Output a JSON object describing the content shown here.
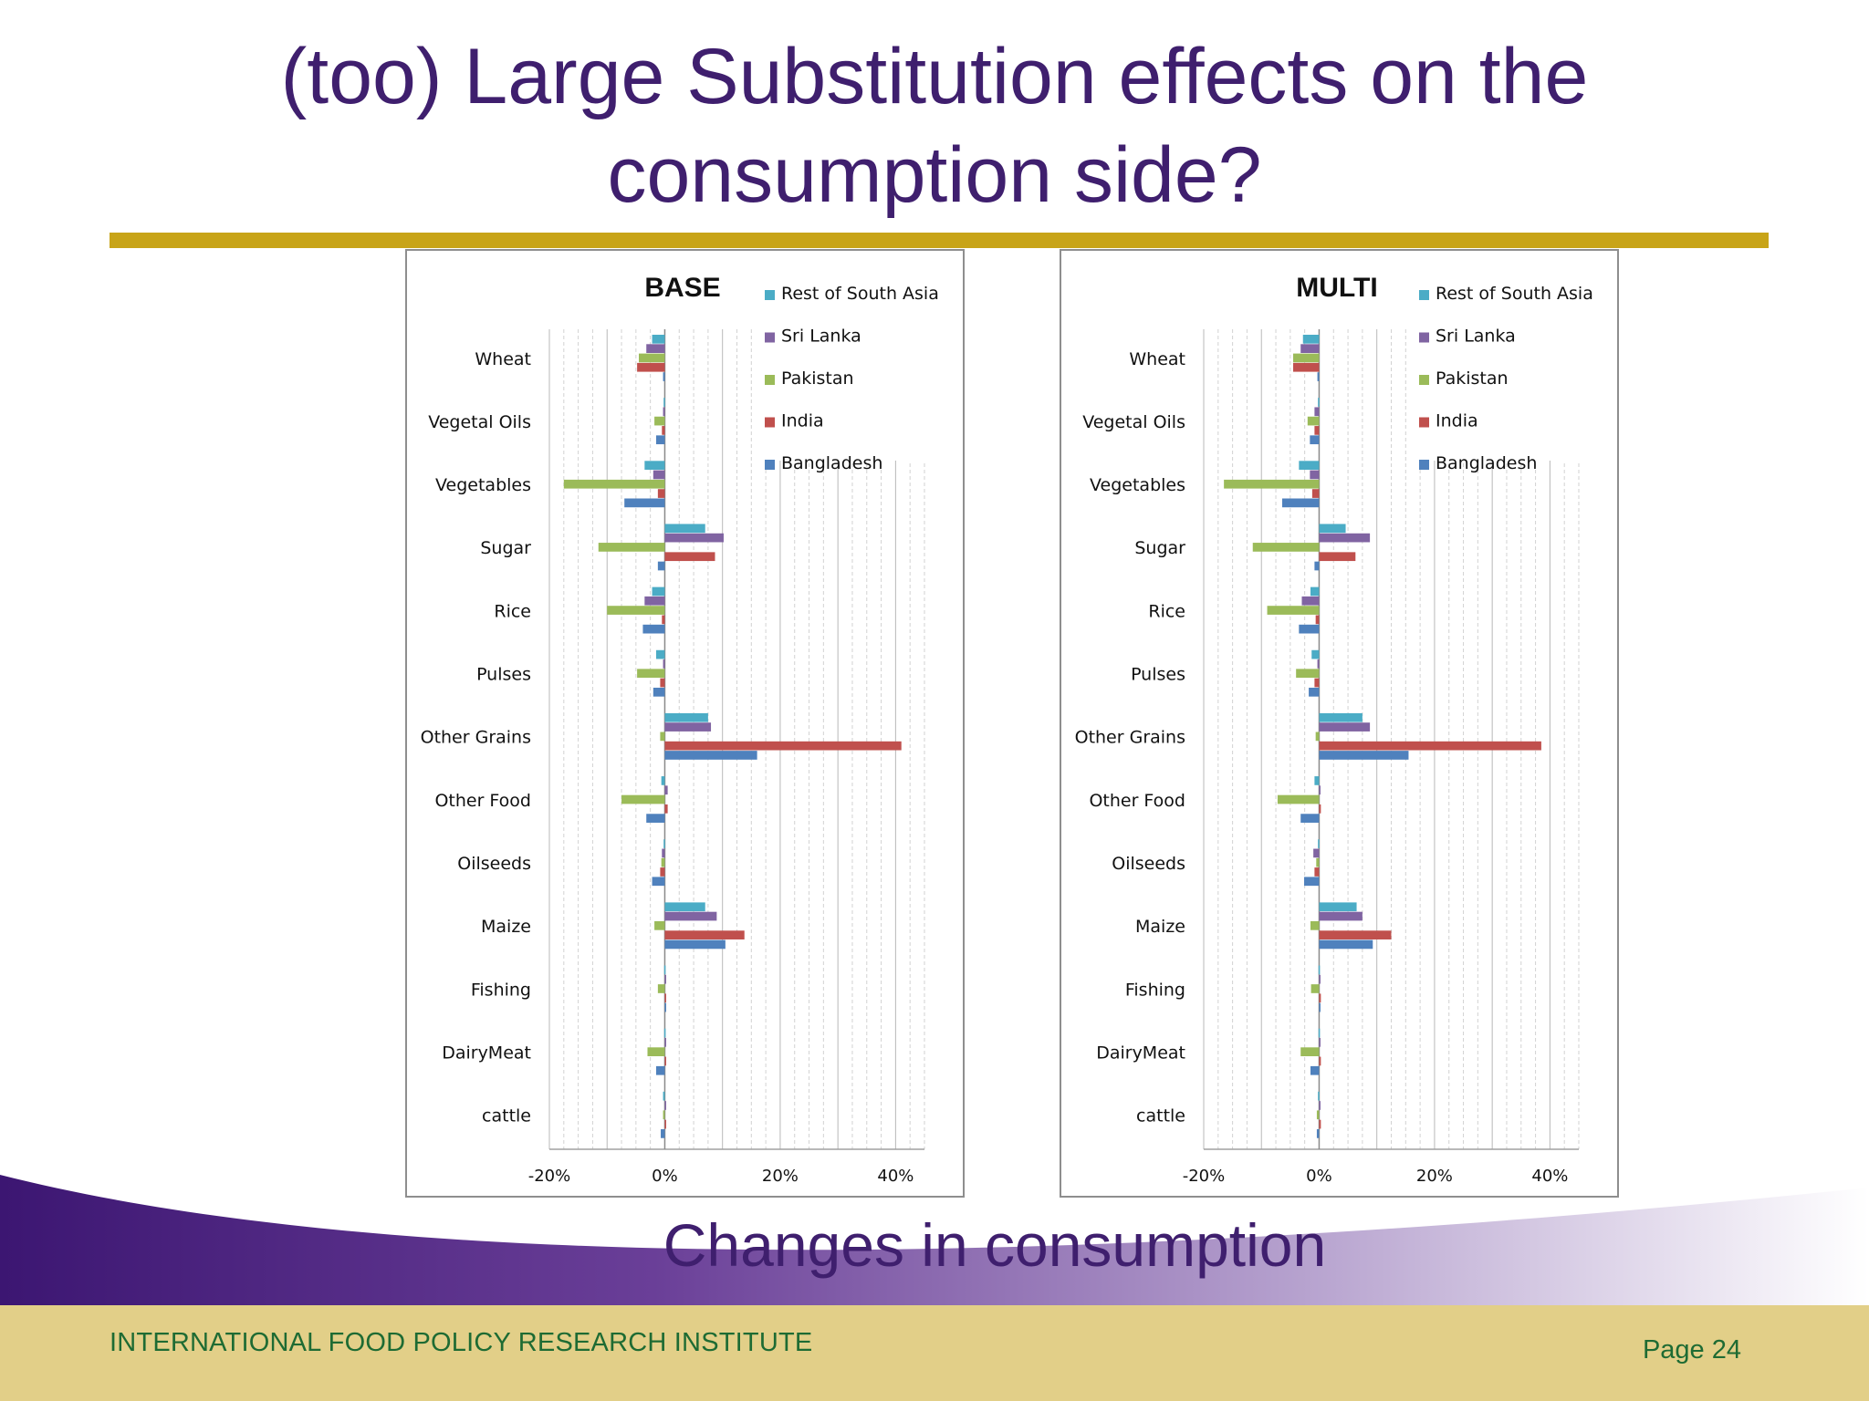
{
  "slide": {
    "title_line1": "(too) Large Substitution effects on the",
    "title_line2": "consumption side?",
    "caption": "Changes in consumption",
    "footer_org": "INTERNATIONAL FOOD POLICY RESEARCH INSTITUTE",
    "page_label": "Page 24"
  },
  "colors": {
    "title": "#3f1f6e",
    "rule": "#c8a418",
    "footer_band": "#e2cf88",
    "footer_text": "#1e6b33",
    "swoosh": "#5a2d8a"
  },
  "chart_data": [
    {
      "type": "bar",
      "orientation": "horizontal",
      "title": "BASE",
      "categories": [
        "Wheat",
        "Vegetal Oils",
        "Vegetables",
        "Sugar",
        "Rice",
        "Pulses",
        "Other Grains",
        "Other Food",
        "Oilseeds",
        "Maize",
        "Fishing",
        "DairyMeat",
        "cattle"
      ],
      "xlim": [
        -20,
        45
      ],
      "xticks": [
        "-20%",
        "0%",
        "20%",
        "40%"
      ],
      "xtick_values": [
        -20,
        0,
        20,
        40
      ],
      "grid": "vertical dashed minor, solid major",
      "legend": "top-right",
      "series": [
        {
          "name": "Rest of South Asia",
          "color": "#4bacc6",
          "values": [
            -2.2,
            -0.2,
            -3.5,
            7,
            -2.2,
            -1.5,
            7.5,
            -0.6,
            -0.2,
            7,
            -0.1,
            -0.1,
            -0.3
          ]
        },
        {
          "name": "Sri Lanka",
          "color": "#8064a2",
          "values": [
            -3.2,
            -0.3,
            -2,
            10.2,
            -3.5,
            -0.3,
            8,
            0.5,
            -0.5,
            9,
            0.1,
            0.2,
            0.2
          ]
        },
        {
          "name": "Pakistan",
          "color": "#9bbb59",
          "values": [
            -4.5,
            -1.8,
            -17.5,
            -11.5,
            -10,
            -4.8,
            -0.8,
            -7.5,
            -0.6,
            -1.8,
            -1.2,
            -3,
            -0.3
          ]
        },
        {
          "name": "India",
          "color": "#c0504d",
          "values": [
            -4.8,
            -0.5,
            -1.2,
            8.7,
            -0.5,
            -0.8,
            41,
            0.5,
            -0.8,
            13.8,
            0.1,
            0.2,
            0.2
          ]
        },
        {
          "name": "Bangladesh",
          "color": "#4f81bd",
          "values": [
            -0.3,
            -1.5,
            -7,
            -1.2,
            -3.8,
            -2,
            16,
            -3.2,
            -2.2,
            10.5,
            0.1,
            -1.5,
            -0.7
          ]
        }
      ]
    },
    {
      "type": "bar",
      "orientation": "horizontal",
      "title": "MULTI",
      "categories": [
        "Wheat",
        "Vegetal Oils",
        "Vegetables",
        "Sugar",
        "Rice",
        "Pulses",
        "Other Grains",
        "Other Food",
        "Oilseeds",
        "Maize",
        "Fishing",
        "DairyMeat",
        "cattle"
      ],
      "xlim": [
        -20,
        45
      ],
      "xticks": [
        "-20%",
        "0%",
        "20%",
        "40%"
      ],
      "xtick_values": [
        -20,
        0,
        20,
        40
      ],
      "grid": "vertical dashed minor, solid major",
      "legend": "top-right",
      "series": [
        {
          "name": "Rest of South Asia",
          "color": "#4bacc6",
          "values": [
            -2.8,
            -0.2,
            -3.5,
            4.6,
            -1.5,
            -1.3,
            7.5,
            -0.8,
            -0.2,
            6.5,
            -0.1,
            -0.1,
            -0.2
          ]
        },
        {
          "name": "Sri Lanka",
          "color": "#8064a2",
          "values": [
            -3.2,
            -0.8,
            -1.6,
            8.8,
            -3,
            -0.3,
            8.8,
            0.2,
            -1,
            7.5,
            0.1,
            0.2,
            0.2
          ]
        },
        {
          "name": "Pakistan",
          "color": "#9bbb59",
          "values": [
            -4.5,
            -2,
            -16.5,
            -11.5,
            -9,
            -4,
            -0.6,
            -7.2,
            -0.5,
            -1.5,
            -1.4,
            -3.2,
            -0.4
          ]
        },
        {
          "name": "India",
          "color": "#c0504d",
          "values": [
            -4.5,
            -0.8,
            -1.2,
            6.3,
            -0.6,
            -0.8,
            38.5,
            0.3,
            -0.8,
            12.5,
            0.3,
            0.3,
            0.3
          ]
        },
        {
          "name": "Bangladesh",
          "color": "#4f81bd",
          "values": [
            -0.3,
            -1.6,
            -6.4,
            -0.8,
            -3.5,
            -1.8,
            15.5,
            -3.2,
            -2.6,
            9.3,
            0.1,
            -1.5,
            -0.4
          ]
        }
      ]
    }
  ]
}
